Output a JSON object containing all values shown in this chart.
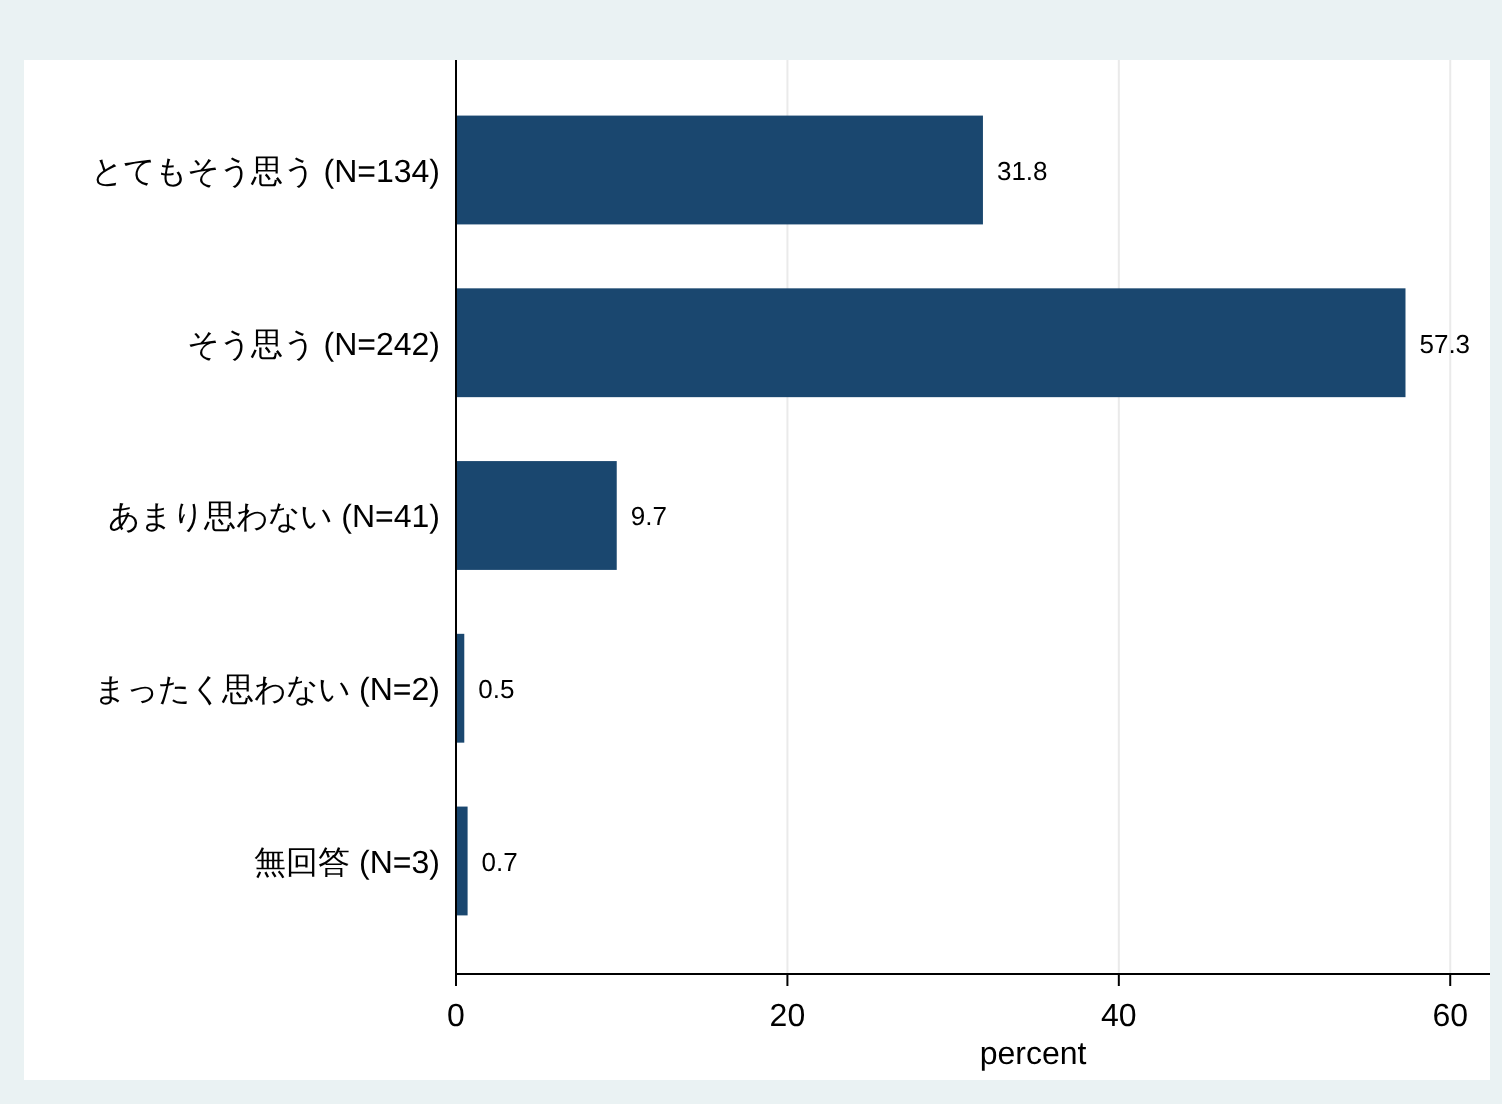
{
  "chart_data": {
    "type": "bar",
    "orientation": "horizontal",
    "categories": [
      "とてもそう思う (N=134)",
      "そう思う (N=242)",
      "あまり思わない (N=41)",
      "まったく思わない (N=2)",
      "無回答 (N=3)"
    ],
    "values": [
      31.8,
      57.3,
      9.7,
      0.5,
      0.7
    ],
    "color": "#1a476f",
    "xlabel": "percent",
    "xlim": [
      0,
      62.4
    ],
    "xticks": [
      0,
      20,
      40,
      60
    ],
    "grid": "x",
    "data_labels": true
  }
}
